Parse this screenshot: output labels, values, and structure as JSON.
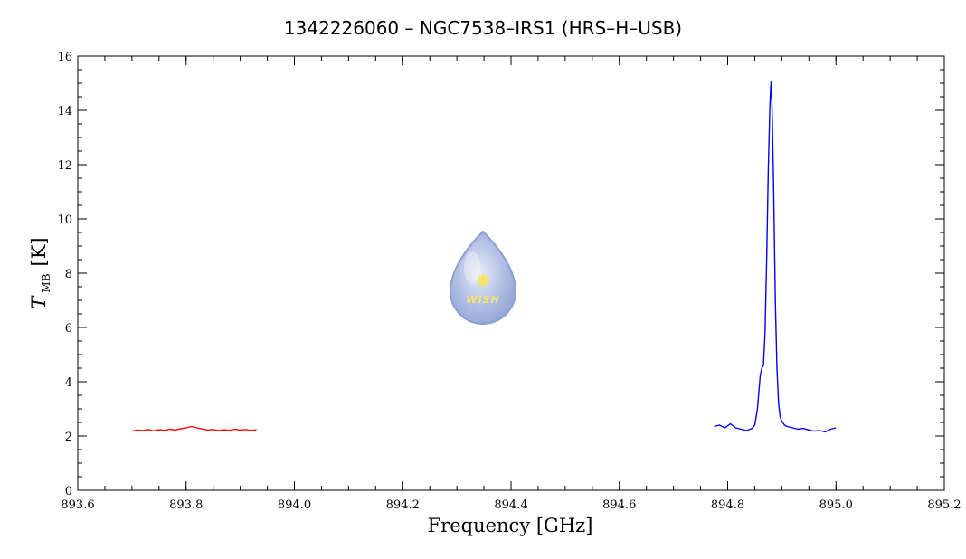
{
  "chart_data": {
    "type": "line",
    "title": "1342226060 – NGC7538–IRS1 (HRS–H–USB)",
    "xlabel": "Frequency [GHz]",
    "ylabel_symbol": "T",
    "ylabel_subscript": "MB",
    "ylabel_unit": "[K]",
    "xlim": [
      893.6,
      895.2
    ],
    "ylim": [
      0,
      16
    ],
    "xticks": [
      893.6,
      893.8,
      894.0,
      894.2,
      894.4,
      894.6,
      894.8,
      895.0,
      895.2
    ],
    "xtick_labels": [
      "893.6",
      "893.8",
      "894.0",
      "894.2",
      "894.4",
      "894.6",
      "894.8",
      "895.0",
      "895.2"
    ],
    "yticks": [
      0,
      2,
      4,
      6,
      8,
      10,
      12,
      14,
      16
    ],
    "ytick_labels": [
      "0",
      "2",
      "4",
      "6",
      "8",
      "10",
      "12",
      "14",
      "16"
    ],
    "grid": false,
    "series": [
      {
        "color": "#ff0000",
        "x": [
          893.7,
          893.71,
          893.72,
          893.73,
          893.74,
          893.75,
          893.76,
          893.77,
          893.78,
          893.79,
          893.8,
          893.81,
          893.82,
          893.83,
          893.84,
          893.85,
          893.86,
          893.87,
          893.88,
          893.89,
          893.9,
          893.91,
          893.92,
          893.93
        ],
        "y": [
          2.18,
          2.22,
          2.2,
          2.24,
          2.19,
          2.23,
          2.21,
          2.25,
          2.22,
          2.27,
          2.3,
          2.35,
          2.3,
          2.26,
          2.22,
          2.24,
          2.2,
          2.23,
          2.21,
          2.25,
          2.22,
          2.24,
          2.2,
          2.23
        ]
      },
      {
        "color": "#0000ff",
        "x": [
          894.775,
          894.785,
          894.795,
          894.805,
          894.815,
          894.825,
          894.835,
          894.845,
          894.85,
          894.855,
          894.86,
          894.863,
          894.866,
          894.869,
          894.872,
          894.875,
          894.878,
          894.88,
          894.882,
          894.885,
          894.888,
          894.891,
          894.894,
          894.897,
          894.9,
          894.905,
          894.91,
          894.92,
          894.93,
          894.94,
          894.95,
          894.96,
          894.97,
          894.98,
          894.99,
          895.0
        ],
        "y": [
          2.35,
          2.4,
          2.3,
          2.45,
          2.3,
          2.25,
          2.2,
          2.28,
          2.4,
          3.0,
          4.2,
          4.5,
          4.6,
          5.8,
          8.5,
          11.8,
          14.2,
          15.05,
          14.1,
          11.0,
          7.0,
          4.5,
          3.2,
          2.7,
          2.55,
          2.4,
          2.35,
          2.3,
          2.25,
          2.28,
          2.22,
          2.18,
          2.2,
          2.15,
          2.25,
          2.3
        ]
      }
    ]
  },
  "logo": {
    "text": "WISH",
    "star_glyph": "✸",
    "drop_color": "#a9b8e0",
    "star_color": "#f4e36a"
  }
}
